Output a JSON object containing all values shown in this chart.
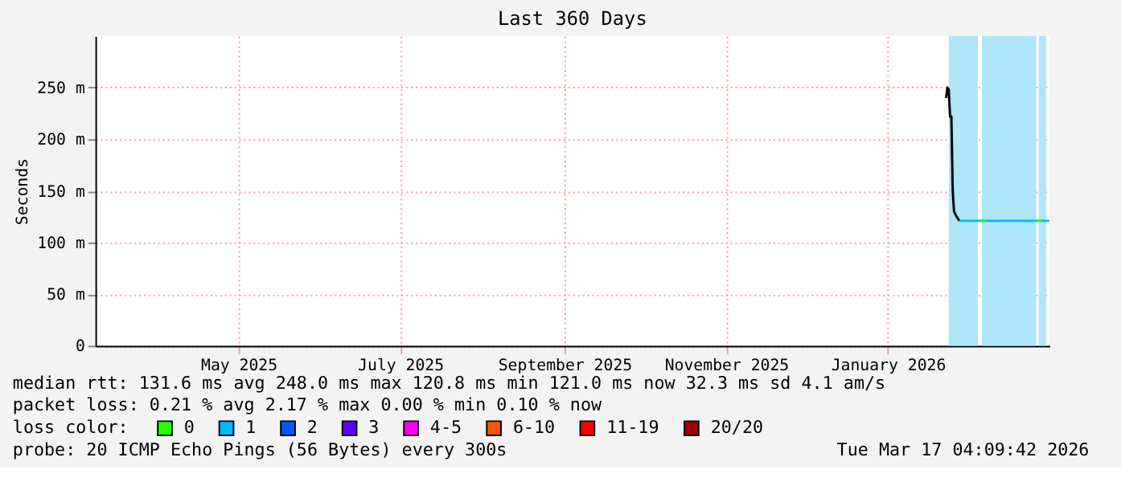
{
  "chart_data": {
    "type": "line",
    "title": "Last 360 Days",
    "ylabel": "Seconds",
    "xlim": [
      "2025-03-22",
      "2026-03-17"
    ],
    "xticks": [
      {
        "value": "2025-05-15",
        "label": "May 2025"
      },
      {
        "value": "2025-07-15",
        "label": "July 2025"
      },
      {
        "value": "2025-09-15",
        "label": "September 2025"
      },
      {
        "value": "2025-11-15",
        "label": "November 2025"
      },
      {
        "value": "2026-01-15",
        "label": "January 2026"
      }
    ],
    "ylim": [
      0,
      300
    ],
    "yticks": [
      0,
      {
        "value": 50,
        "label": "50 m"
      },
      {
        "value": 100,
        "label": "100 m"
      },
      {
        "value": 150,
        "label": "150 m"
      },
      {
        "value": 200,
        "label": "200 m"
      },
      {
        "value": 250,
        "label": "250 m"
      }
    ],
    "grid": true,
    "legend": "bottom",
    "legend_title": "loss color:",
    "marker": "none",
    "line_style": "solid",
    "series": [
      {
        "color": "#000000",
        "x": [
          "2026-02-06",
          "2026-02-06T12:00",
          "2026-02-07",
          "2026-02-07T12:00",
          "2026-02-08",
          "2026-02-08T12:00",
          "2026-02-09",
          "2026-02-10",
          "2026-02-11"
        ],
        "values": [
          240,
          250,
          248,
          222,
          222,
          150,
          130,
          125,
          121
        ]
      },
      {
        "name": "0",
        "color": "#26ff00",
        "x": [
          "2026-02-19",
          "2026-02-21",
          "2026-02-22",
          "2026-03-12",
          "2026-03-14"
        ],
        "values": [
          121,
          121,
          null,
          121,
          121
        ]
      },
      {
        "name": "1",
        "color": "#00b8ff",
        "x": [
          "2026-02-11",
          "2026-03-17"
        ],
        "values": [
          121,
          121
        ]
      },
      {
        "name": "2",
        "color": "#0059ff"
      },
      {
        "name": "3",
        "color": "#5e00ff"
      },
      {
        "name": "4-5",
        "color": "#ff00fe"
      },
      {
        "name": "6-10",
        "color": "#ff5500"
      },
      {
        "name": "11-19",
        "color": "#ff0000"
      },
      {
        "name": "20/20",
        "color": "#a10000"
      }
    ],
    "bands": [
      {
        "axis": "x",
        "from": "2026-02-07",
        "to": "2026-02-18",
        "color": "#aee6fa"
      },
      {
        "axis": "x",
        "from": "2026-02-19T12:00",
        "to": "2026-03-12",
        "color": "#aee6fa"
      },
      {
        "axis": "x",
        "from": "2026-03-13",
        "to": "2026-03-15T18:00",
        "color": "#aee6fa"
      }
    ],
    "annotations": [
      "median rtt:  131.6 ms avg  248.0 ms max  120.8 ms min  121.0 ms now  32.3 ms sd  4.1   am/s",
      "packet loss: 0.21 % avg  2.17 % max  0.00 % min  0.10 % now",
      "probe:       20 ICMP Echo Pings (56 Bytes) every 300s",
      "Tue Mar 17 04:09:42 2026"
    ]
  }
}
